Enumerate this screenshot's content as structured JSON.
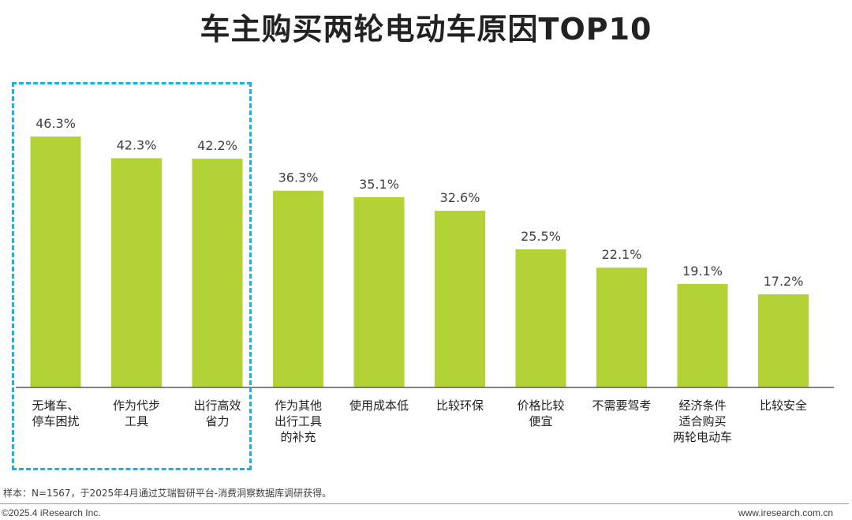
{
  "title": "车主购买两轮电动车原因TOP10",
  "chart_data": {
    "type": "bar",
    "title": "车主购买两轮电动车原因TOP10",
    "categories": [
      [
        "无堵车、",
        "停车困扰"
      ],
      [
        "作为代步",
        "工具"
      ],
      [
        "出行高效",
        "省力"
      ],
      [
        "作为其他",
        "出行工具",
        "的补充"
      ],
      [
        "使用成本低"
      ],
      [
        "比较环保"
      ],
      [
        "价格比较",
        "便宜"
      ],
      [
        "不需要驾考"
      ],
      [
        "经济条件",
        "适合购买",
        "两轮电动车"
      ],
      [
        "比较安全"
      ]
    ],
    "values": [
      46.3,
      42.3,
      42.2,
      36.3,
      35.1,
      32.6,
      25.5,
      22.1,
      19.1,
      17.2
    ],
    "value_labels": [
      "46.3%",
      "42.3%",
      "42.2%",
      "36.3%",
      "35.1%",
      "32.6%",
      "25.5%",
      "22.1%",
      "19.1%",
      "17.2%"
    ],
    "ylim": [
      0,
      50
    ],
    "xlabel": "",
    "ylabel": "",
    "grid": false,
    "bar_color": "#b2d235",
    "highlight_color": "#1ab0e8",
    "highlight_range": [
      0,
      2
    ]
  },
  "note": "样本：N=1567，于2025年4月通过艾瑞智研平台-消费洞察数据库调研获得。",
  "footer": {
    "copyright": "©2025.4 iResearch Inc.",
    "site": "www.iresearch.com.cn"
  }
}
